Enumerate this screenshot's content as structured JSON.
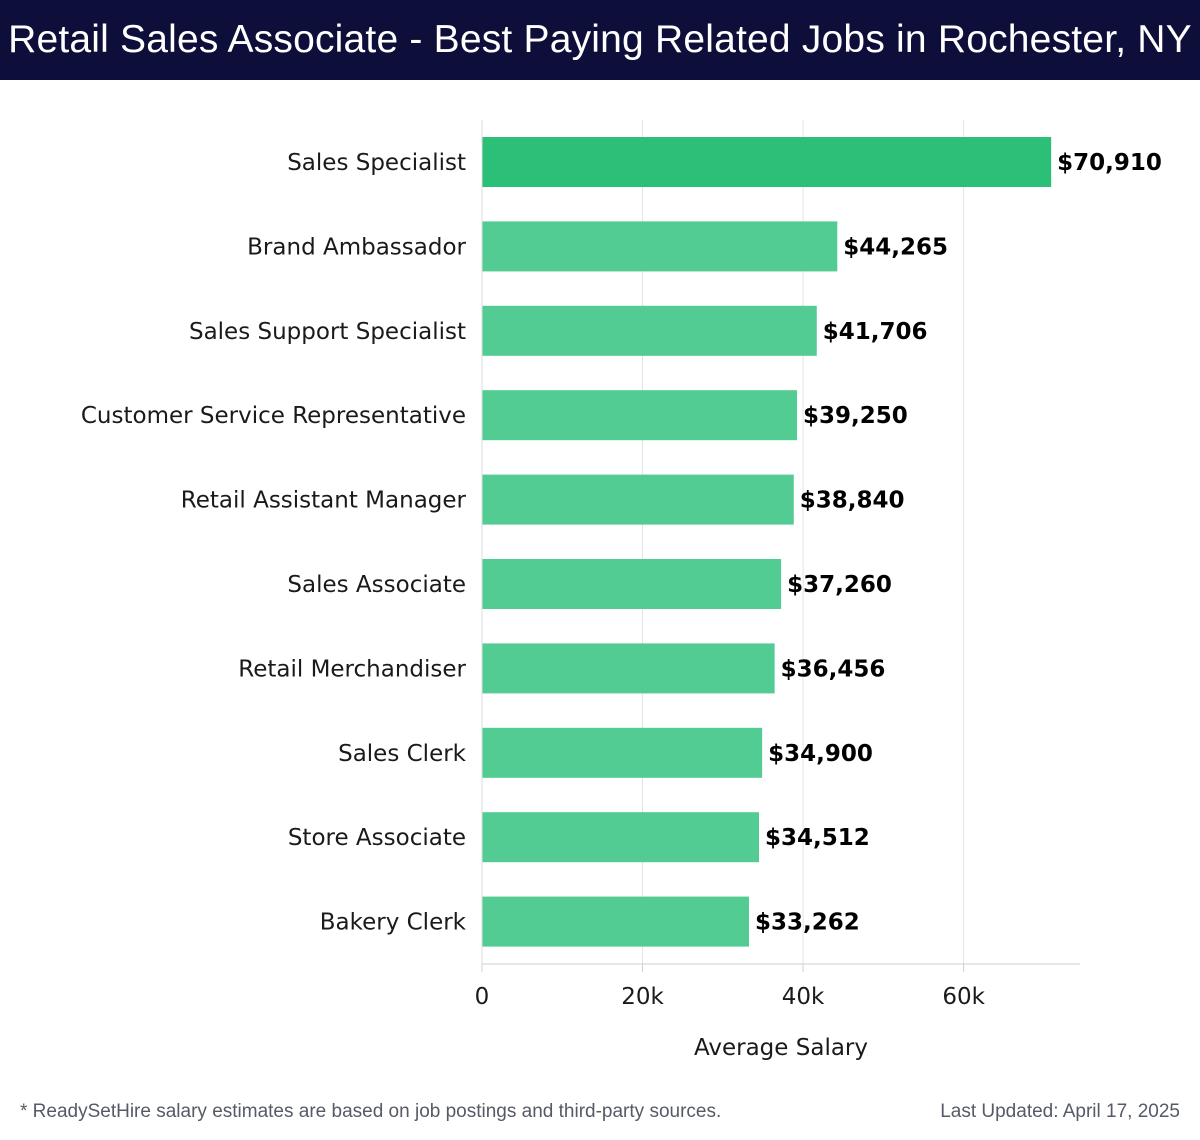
{
  "header": {
    "title": "Retail Sales Associate - Best Paying Related Jobs in Rochester, NY"
  },
  "footer": {
    "note": "* ReadySetHire salary estimates are based on job postings and third-party sources.",
    "updated": "Last Updated: April 17, 2025"
  },
  "colors": {
    "header_bg": "#0d0f3a",
    "bar_top": "#2bbf77",
    "bar": "#52cc93"
  },
  "chart_data": {
    "type": "bar",
    "orientation": "horizontal",
    "categories": [
      "Sales Specialist",
      "Brand Ambassador",
      "Sales Support Specialist",
      "Customer Service Representative",
      "Retail Assistant Manager",
      "Sales Associate",
      "Retail Merchandiser",
      "Sales Clerk",
      "Store Associate",
      "Bakery Clerk"
    ],
    "values": [
      70910,
      44265,
      41706,
      39250,
      38840,
      37260,
      36456,
      34900,
      34512,
      33262
    ],
    "value_labels": [
      "$70,910",
      "$44,265",
      "$41,706",
      "$39,250",
      "$38,840",
      "$37,260",
      "$36,456",
      "$34,900",
      "$34,512",
      "$33,262"
    ],
    "xlabel": "Average Salary",
    "ylabel": "",
    "xlim": [
      0,
      74500
    ],
    "xticks": [
      0,
      20000,
      40000,
      60000
    ],
    "xtick_labels": [
      "0",
      "20k",
      "40k",
      "60k"
    ],
    "grid": "vertical"
  }
}
